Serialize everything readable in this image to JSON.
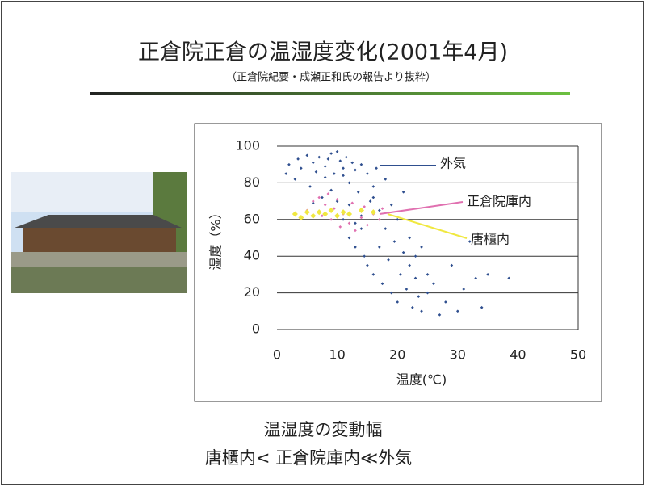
{
  "slide": {
    "title": "正倉院正倉の温湿度変化(2001年4月)",
    "subtitle": "（正倉院紀要・成瀬正和氏の報告より抜粋）",
    "caption_lines": [
      "温湿度の変動幅",
      "唐櫃内< 正倉院庫内≪外気"
    ]
  },
  "chart_data": {
    "type": "scatter",
    "x_label": "温度(℃)",
    "y_label": "湿度（%）",
    "xlim": [
      0,
      50
    ],
    "xticks": [
      0,
      10,
      20,
      30,
      40,
      50
    ],
    "ylim": [
      0,
      100
    ],
    "yticks": [
      0,
      20,
      40,
      60,
      80,
      100
    ],
    "grid": true,
    "series": [
      {
        "name": "外気",
        "color": "#2f4f8f",
        "x": [
          1.5,
          2,
          3,
          3.5,
          4,
          5,
          5.5,
          6,
          6.5,
          7,
          7.5,
          8,
          8.5,
          9,
          9.5,
          10,
          10,
          10.5,
          11,
          11,
          11.5,
          12,
          12,
          12.5,
          13,
          13,
          13.5,
          14,
          14,
          14.5,
          15,
          15,
          15.5,
          16,
          16,
          16.5,
          17,
          17,
          17.5,
          18,
          18,
          18.5,
          19,
          19,
          19.5,
          20,
          20,
          20.5,
          21,
          21,
          21.5,
          22,
          22,
          22.5,
          23,
          23,
          23.5,
          24,
          24,
          25,
          25,
          26,
          27,
          28,
          29,
          30,
          31,
          32,
          33,
          34,
          35,
          38.5,
          9,
          12,
          14,
          8,
          11,
          16,
          6,
          13
        ],
        "values": [
          85,
          90,
          82,
          93,
          88,
          95,
          78,
          91,
          86,
          94,
          72,
          89,
          93,
          96,
          85,
          97,
          70,
          92,
          60,
          88,
          94,
          50,
          80,
          91,
          45,
          87,
          75,
          55,
          90,
          40,
          35,
          85,
          70,
          30,
          78,
          88,
          45,
          65,
          25,
          55,
          82,
          38,
          20,
          68,
          48,
          15,
          60,
          30,
          42,
          75,
          22,
          50,
          35,
          12,
          40,
          28,
          18,
          45,
          10,
          30,
          20,
          25,
          8,
          15,
          35,
          10,
          22,
          48,
          28,
          12,
          30,
          28,
          76,
          68,
          62,
          83,
          84,
          72,
          69,
          58
        ]
      },
      {
        "name": "正倉院庫内",
        "color": "#e070b0",
        "x": [
          5,
          6,
          7,
          7.5,
          8,
          8.5,
          9,
          9.5,
          10,
          10.5,
          11,
          12,
          12.5,
          13,
          14,
          14.5,
          15,
          16,
          17,
          17.5
        ],
        "values": [
          65,
          70,
          72,
          62,
          68,
          74,
          60,
          66,
          71,
          56,
          63,
          58,
          69,
          54,
          61,
          67,
          57,
          63,
          60,
          66
        ]
      },
      {
        "name": "唐櫃内",
        "color": "#f0e840",
        "x": [
          3,
          4,
          5,
          6,
          7,
          8,
          9,
          10,
          11,
          12,
          14,
          16
        ],
        "values": [
          63,
          61,
          64,
          62,
          64,
          63,
          65,
          62,
          64,
          63,
          65,
          64
        ]
      }
    ]
  }
}
